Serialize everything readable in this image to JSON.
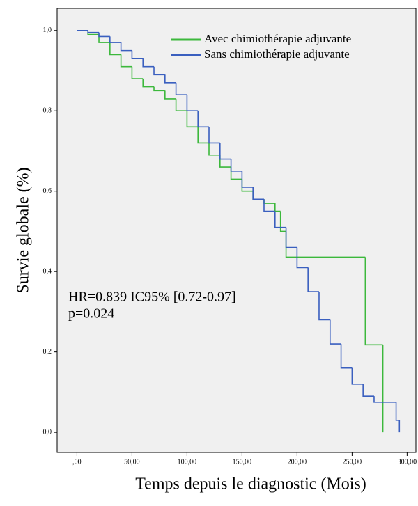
{
  "chart_data": {
    "type": "line",
    "step": true,
    "x_label": "Temps depuis le diagnostic (Mois)",
    "y_label": "Survie globale (%)",
    "annotations": [
      "HR=0.839 IC95% [0.72-0.97]",
      "p=0.024"
    ],
    "xlim": [
      -18,
      308
    ],
    "ylim": [
      -0.05,
      1.055
    ],
    "xticks": [
      {
        "value": 0,
        "label": ",00"
      },
      {
        "value": 50,
        "label": "50,00"
      },
      {
        "value": 100,
        "label": "100,00"
      },
      {
        "value": 150,
        "label": "150,00"
      },
      {
        "value": 200,
        "label": "200,00"
      },
      {
        "value": 250,
        "label": "250,00"
      },
      {
        "value": 300,
        "label": "300,00"
      }
    ],
    "yticks": [
      {
        "value": 0,
        "label": "0,0"
      },
      {
        "value": 0.2,
        "label": "0,2"
      },
      {
        "value": 0.4,
        "label": "0,4"
      },
      {
        "value": 0.6,
        "label": "0,6"
      },
      {
        "value": 0.8,
        "label": "0,8"
      },
      {
        "value": 1,
        "label": "1,0"
      }
    ],
    "series": [
      {
        "name": "Avec chimiothérapie adjuvante",
        "color": "#3cb83c",
        "x": [
          0,
          10,
          20,
          30,
          40,
          50,
          60,
          70,
          80,
          90,
          100,
          110,
          120,
          130,
          140,
          150,
          160,
          170,
          180,
          185,
          190,
          262,
          278
        ],
        "values": [
          1.0,
          0.99,
          0.97,
          0.94,
          0.91,
          0.88,
          0.86,
          0.85,
          0.83,
          0.8,
          0.76,
          0.72,
          0.69,
          0.66,
          0.63,
          0.6,
          0.58,
          0.57,
          0.55,
          0.5,
          0.436,
          0.218,
          0.0
        ]
      },
      {
        "name": "Sans chimiothérapie adjuvante",
        "color": "#3a5fbf",
        "x": [
          0,
          10,
          20,
          30,
          40,
          50,
          60,
          70,
          80,
          90,
          100,
          110,
          120,
          130,
          140,
          150,
          160,
          170,
          180,
          190,
          200,
          210,
          220,
          230,
          240,
          250,
          260,
          270,
          290,
          293
        ],
        "values": [
          1.0,
          0.995,
          0.985,
          0.97,
          0.95,
          0.93,
          0.91,
          0.89,
          0.87,
          0.84,
          0.8,
          0.76,
          0.72,
          0.68,
          0.65,
          0.61,
          0.58,
          0.55,
          0.51,
          0.46,
          0.41,
          0.35,
          0.28,
          0.22,
          0.16,
          0.12,
          0.09,
          0.075,
          0.03,
          0.0
        ]
      }
    ]
  }
}
